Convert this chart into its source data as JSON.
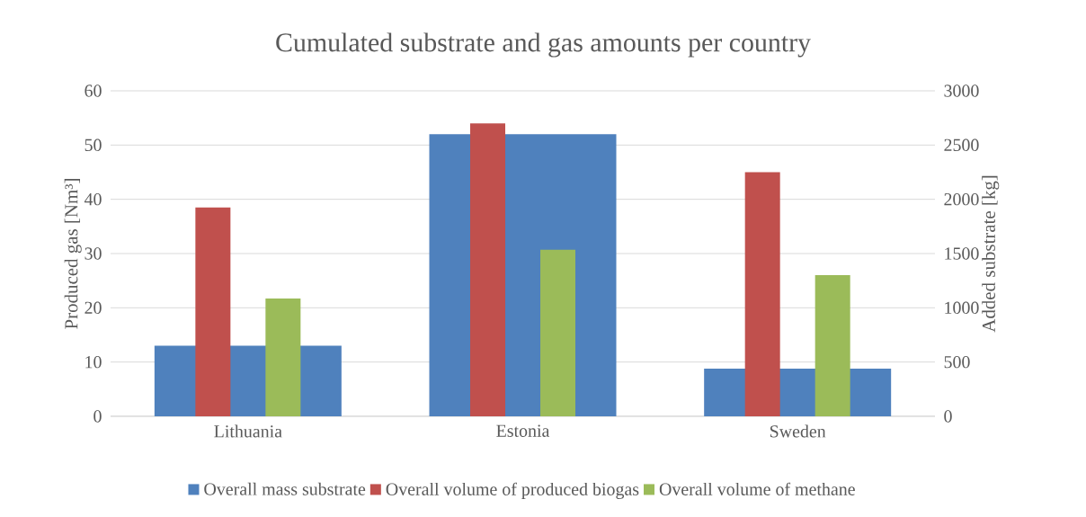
{
  "chart_data": {
    "type": "bar",
    "title": "Cumulated substrate and gas amounts per country",
    "ylabel": "Produced gas [Nm³]",
    "y2label": "Added substrate [kg]",
    "categories": [
      "Lithuania",
      "Estonia",
      "Sweden"
    ],
    "series": [
      {
        "name": "Overall mass substrate",
        "color": "#4f81bd",
        "values": [
          650,
          2600,
          440
        ],
        "axis": "y2"
      },
      {
        "name": "Overall volume of produced biogas",
        "color": "#c0504d",
        "values": [
          38.5,
          54,
          45
        ]
      },
      {
        "name": "Overall volume of methane",
        "color": "#9bbb59",
        "values": [
          21.7,
          30.7,
          26
        ]
      }
    ],
    "ylim": [
      0,
      60
    ],
    "yticks": [
      0,
      10,
      20,
      30,
      40,
      50,
      60
    ],
    "y2lim": [
      0,
      3000
    ],
    "y2ticks": [
      0,
      500,
      1000,
      1500,
      2000,
      2500,
      3000
    ],
    "grid": "y",
    "legend": "bottom"
  }
}
